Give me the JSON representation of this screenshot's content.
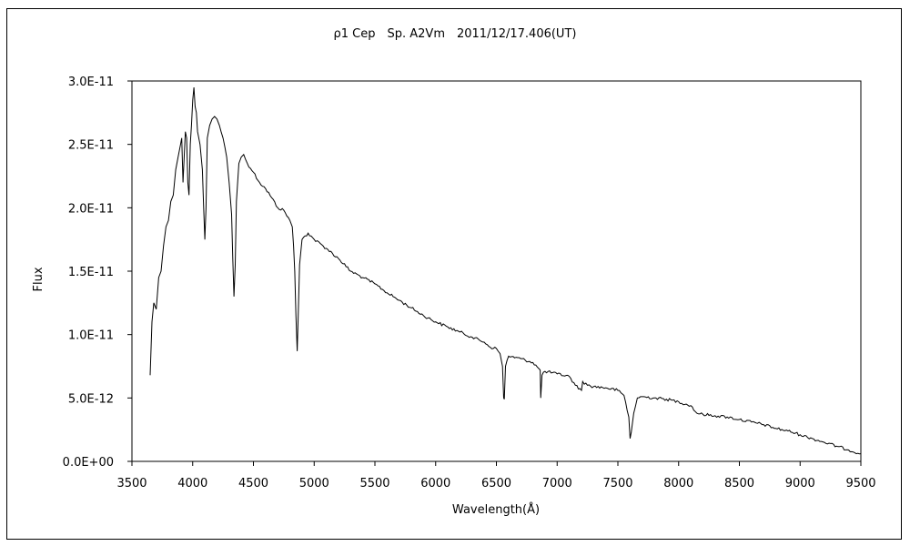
{
  "chart_data": {
    "type": "line",
    "title": "ρ1 Cep　Sp. A2Vm　2011/12/17.406(UT)",
    "xlabel": "Wavelength(Å)",
    "ylabel": "Flux",
    "xlim": [
      3500,
      9500
    ],
    "ylim": [
      0,
      3e-11
    ],
    "x_ticks": [
      "3500",
      "4000",
      "4500",
      "5000",
      "5500",
      "6000",
      "6500",
      "7000",
      "7500",
      "8000",
      "8500",
      "9000",
      "9500"
    ],
    "y_ticks": [
      "0.0E+00",
      "5.0E-12",
      "1.0E-11",
      "1.5E-11",
      "2.0E-11",
      "2.5E-11",
      "3.0E-11"
    ],
    "grid": false,
    "legend": "none",
    "line_color": "#000000",
    "series": [
      {
        "x": [
          3650,
          3665,
          3680,
          3700,
          3720,
          3740,
          3760,
          3780,
          3800,
          3820,
          3840,
          3860,
          3880,
          3900,
          3910,
          3920,
          3930,
          3940,
          3950,
          3960,
          3970,
          3980,
          3990,
          4000,
          4010,
          4020,
          4030,
          4040,
          4060,
          4080,
          4090,
          4100,
          4110,
          4120,
          4140,
          4160,
          4180,
          4200,
          4220,
          4250,
          4280,
          4300,
          4320,
          4330,
          4340,
          4350,
          4360,
          4380,
          4400,
          4420,
          4450,
          4500,
          4550,
          4600,
          4650,
          4700,
          4750,
          4800,
          4820,
          4830,
          4840,
          4850,
          4860,
          4870,
          4880,
          4900,
          4950,
          5000,
          5100,
          5200,
          5300,
          5400,
          5500,
          5600,
          5700,
          5800,
          5900,
          6000,
          6100,
          6200,
          6300,
          6400,
          6450,
          6500,
          6530,
          6550,
          6560,
          6565,
          6575,
          6600,
          6700,
          6800,
          6860,
          6865,
          6875,
          6900,
          7000,
          7100,
          7150,
          7200,
          7210,
          7250,
          7300,
          7400,
          7500,
          7550,
          7590,
          7600,
          7610,
          7630,
          7660,
          7700,
          7800,
          7900,
          8000,
          8100,
          8150,
          8200,
          8300,
          8400,
          8500,
          8600,
          8700,
          8800,
          8900,
          9000,
          9100,
          9200,
          9300,
          9400,
          9500
        ],
        "y": [
          6.8e-12,
          1.1e-11,
          1.25e-11,
          1.2e-11,
          1.45e-11,
          1.5e-11,
          1.7e-11,
          1.85e-11,
          1.9e-11,
          2.05e-11,
          2.1e-11,
          2.3e-11,
          2.4e-11,
          2.5e-11,
          2.55e-11,
          2.2e-11,
          2.4e-11,
          2.6e-11,
          2.55e-11,
          2.2e-11,
          2.1e-11,
          2.5e-11,
          2.65e-11,
          2.85e-11,
          2.95e-11,
          2.8e-11,
          2.75e-11,
          2.6e-11,
          2.5e-11,
          2.3e-11,
          2e-11,
          1.75e-11,
          2e-11,
          2.55e-11,
          2.65e-11,
          2.7e-11,
          2.72e-11,
          2.7e-11,
          2.65e-11,
          2.55e-11,
          2.4e-11,
          2.2e-11,
          1.95e-11,
          1.6e-11,
          1.3e-11,
          1.55e-11,
          2.05e-11,
          2.35e-11,
          2.4e-11,
          2.42e-11,
          2.35e-11,
          2.28e-11,
          2.2e-11,
          2.15e-11,
          2.08e-11,
          2e-11,
          1.98e-11,
          1.9e-11,
          1.85e-11,
          1.7e-11,
          1.5e-11,
          1.15e-11,
          8.7e-12,
          1.2e-11,
          1.55e-11,
          1.75e-11,
          1.8e-11,
          1.75e-11,
          1.68e-11,
          1.6e-11,
          1.5e-11,
          1.45e-11,
          1.4e-11,
          1.33e-11,
          1.27e-11,
          1.21e-11,
          1.15e-11,
          1.1e-11,
          1.06e-11,
          1.02e-11,
          9.8e-12,
          9.4e-12,
          9e-12,
          8.9e-12,
          8.5e-12,
          7.5e-12,
          5e-12,
          4.9e-12,
          7.5e-12,
          8.3e-12,
          8.1e-12,
          7.8e-12,
          7.2e-12,
          5e-12,
          6.8e-12,
          7.1e-12,
          6.9e-12,
          6.7e-12,
          6e-12,
          5.6e-12,
          6.3e-12,
          6e-12,
          5.9e-12,
          5.8e-12,
          5.6e-12,
          5.2e-12,
          3.5e-12,
          1.8e-12,
          2.3e-12,
          3.8e-12,
          5e-12,
          5.1e-12,
          5e-12,
          4.9e-12,
          4.7e-12,
          4.4e-12,
          3.8e-12,
          3.7e-12,
          3.6e-12,
          3.5e-12,
          3.3e-12,
          3.1e-12,
          2.9e-12,
          2.6e-12,
          2.4e-12,
          2.1e-12,
          1.8e-12,
          1.5e-12,
          1.2e-12,
          9e-13,
          6e-13
        ]
      }
    ]
  }
}
